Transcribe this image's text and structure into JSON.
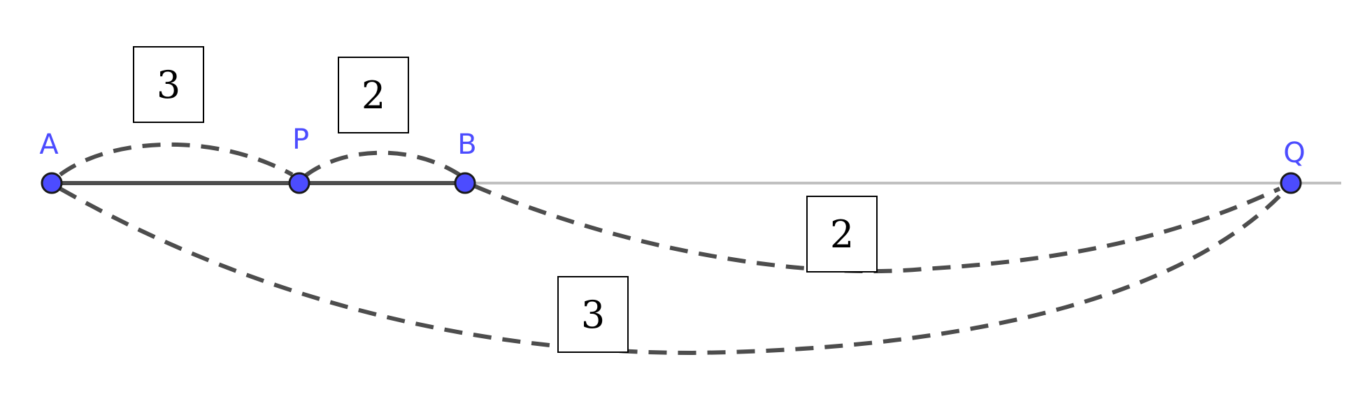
{
  "colors": {
    "point_fill": "#4c4cff",
    "point_stroke": "#1a1a1a",
    "label": "#4c4cff",
    "segment": "#4d4d4d",
    "arc": "#4d4d4d",
    "line": "#c0c0c0",
    "box_border": "#000000",
    "box_text": "#000000"
  },
  "points": [
    {
      "id": "A",
      "label": "A"
    },
    {
      "id": "P",
      "label": "P"
    },
    {
      "id": "B",
      "label": "B"
    },
    {
      "id": "Q",
      "label": "Q"
    }
  ],
  "arc_labels": {
    "AP": "3",
    "PB": "2",
    "BQ": "2",
    "AQ": "3"
  }
}
